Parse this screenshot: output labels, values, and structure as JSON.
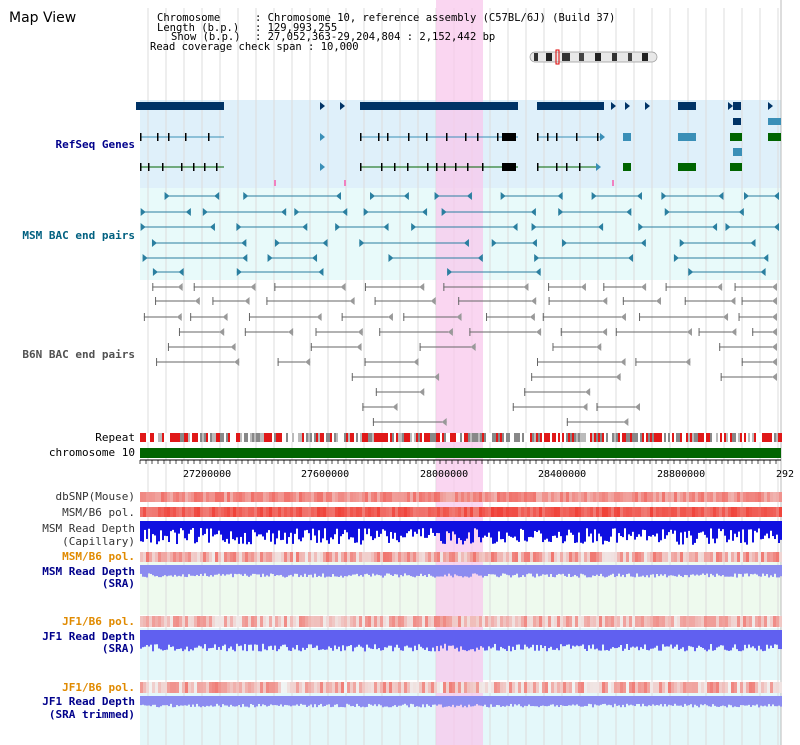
{
  "window": {
    "title": "Map View"
  },
  "header": {
    "rows": [
      {
        "label": "Chromosome",
        "value": "Chromosome 10, reference assembly (C57BL/6J) (Build 37)"
      },
      {
        "label": "Length (b.p.)",
        "value": "129,993,255"
      },
      {
        "label": "Show (b.p.)",
        "value": "27,052,363-29,204,804 : 2,152,442 bp"
      },
      {
        "label": "Read coverage check span",
        "value": "10,000"
      }
    ]
  },
  "tracks": {
    "refseq_genes": {
      "label": "RefSeq Genes",
      "color": "#00008b",
      "bg": "#dff0fa"
    },
    "msm_bac": {
      "label": "MSM BAC end pairs",
      "color": "#006080",
      "bg": "#e8fafa"
    },
    "b6n_bac": {
      "label": "B6N BAC end pairs",
      "color": "#505050"
    },
    "repeat": {
      "label": "Repeat"
    },
    "chromosome": {
      "label": "chromosome 10",
      "color": "#006400"
    },
    "dbsnp": {
      "label": "dbSNP(Mouse)"
    },
    "msm_b6_pol_1": {
      "label": "MSM/B6 pol."
    },
    "msm_depth_cap": {
      "label_line1": "MSM Read Depth",
      "label_line2": "(Capillary)"
    },
    "msm_b6_pol_2": {
      "label": "MSM/B6 pol.",
      "color": "#e08a00"
    },
    "msm_depth_sra": {
      "label_line1": "MSM Read Depth",
      "label_line2": "(SRA)",
      "color": "#00008b"
    },
    "jf1_b6_pol_1": {
      "label": "JF1/B6 pol.",
      "color": "#e08a00"
    },
    "jf1_depth_sra": {
      "label_line1": "JF1 Read Depth",
      "label_line2": "(SRA)",
      "color": "#00008b"
    },
    "jf1_b6_pol_2": {
      "label": "JF1/B6 pol.",
      "color": "#e08a00"
    },
    "jf1_depth_trim": {
      "label_line1": "JF1 Read Depth",
      "label_line2": "(SRA trimmed)",
      "color": "#00008b"
    }
  },
  "axis": {
    "ticks": [
      "27200000",
      "27600000",
      "28000000",
      "28400000",
      "28800000",
      "292"
    ]
  },
  "colors": {
    "highlight": "#f8c8ec",
    "gene_dark": "#003366",
    "gene_teal": "#3a8fb7",
    "gene_green": "#006400",
    "depth_blue": "#1010e0",
    "depth_lilac": "#8c8cf0",
    "snp_red": "#e83030"
  }
}
